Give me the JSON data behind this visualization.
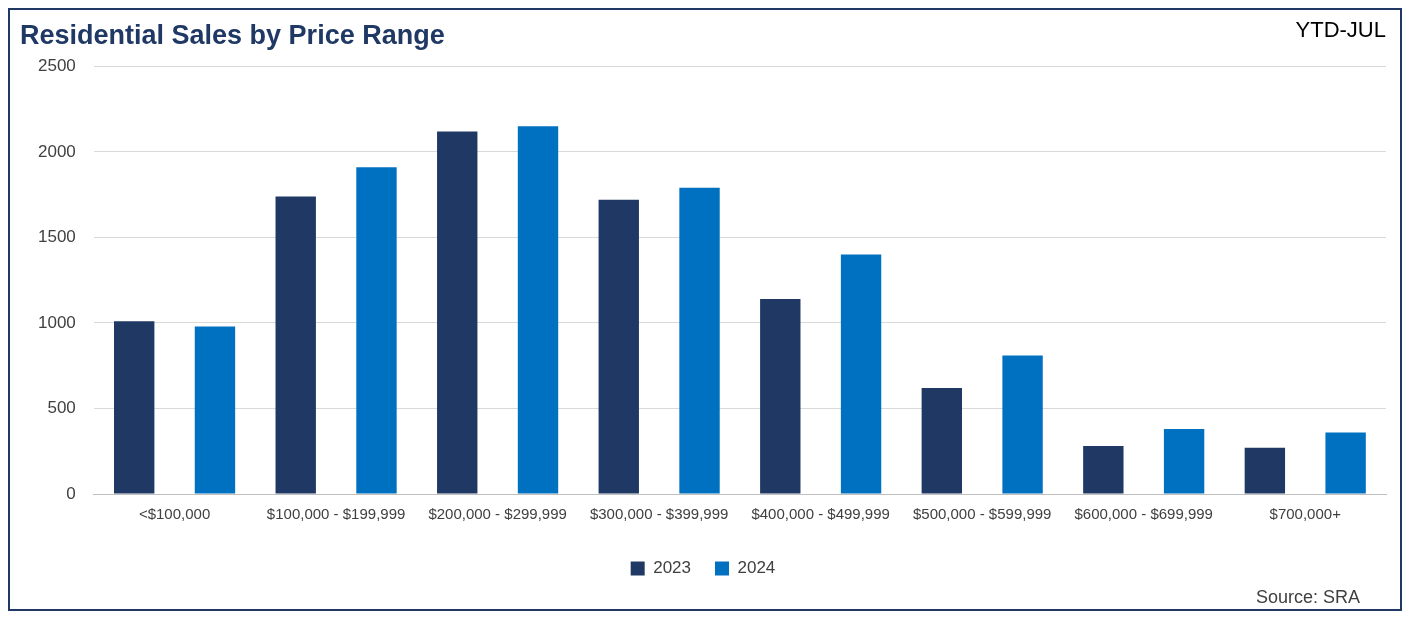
{
  "chart_data": {
    "type": "bar",
    "title": "Residential Sales by Price Range",
    "annotations": [
      "YTD-JUL",
      "Source: SRA"
    ],
    "categories": [
      "<$100,000",
      "$100,000 - $199,999",
      "$200,000 - $299,999",
      "$300,000 - $399,999",
      "$400,000 - $499,999",
      "$500,000 - $599,999",
      "$600,000 - $699,999",
      "$700,000+"
    ],
    "series": [
      {
        "name": "2023",
        "color": "#1f3864",
        "values": [
          1010,
          1740,
          2120,
          1720,
          1140,
          620,
          280,
          270
        ]
      },
      {
        "name": "2024",
        "color": "#0070c0",
        "values": [
          980,
          1910,
          2150,
          1790,
          1400,
          810,
          380,
          360
        ]
      }
    ],
    "ylim": [
      0,
      2500
    ],
    "yticks": [
      0,
      500,
      1000,
      1500,
      2000,
      2500
    ],
    "grid": "y",
    "legend": "bottom"
  }
}
